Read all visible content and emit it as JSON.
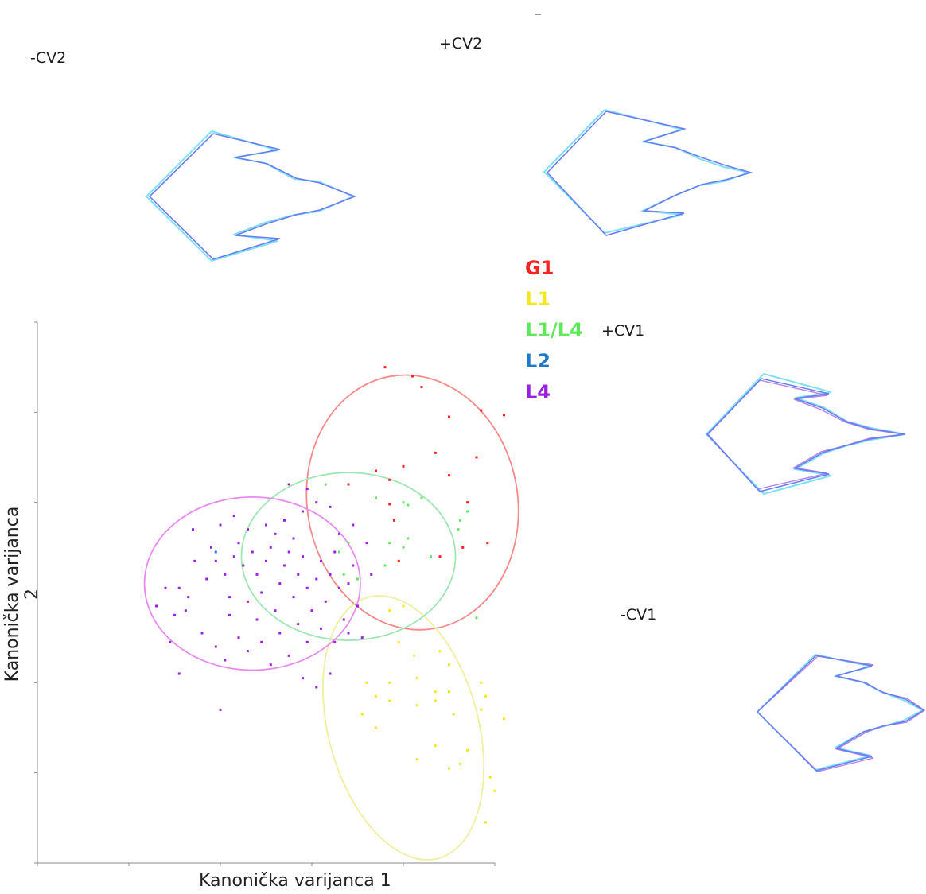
{
  "labels": {
    "minus_cv2": "-CV2",
    "plus_cv2": "+CV2",
    "plus_cv1": "+CV1",
    "minus_cv1": "-CV1"
  },
  "legend": [
    {
      "name": "G1",
      "color": "#ff2020"
    },
    {
      "name": "L1",
      "color": "#f5e81a"
    },
    {
      "name": "L1/L4",
      "color": "#5ee85a"
    },
    {
      "name": "L2",
      "color": "#1f78c8"
    },
    {
      "name": "L4",
      "color": "#9a20e0"
    }
  ],
  "chart_data": {
    "type": "scatter",
    "xlabel": "Kanonička varijanca 1",
    "ylabel": "Kanonička varijanca 2",
    "xlim": [
      -4,
      1
    ],
    "ylim": [
      -3,
      3
    ],
    "series": [
      {
        "name": "G1",
        "color": "#ff2020",
        "ellipse_color": "#f48a8a",
        "ellipse": {
          "cx": 0.1,
          "cy": 1.0,
          "rx": 1.15,
          "ry": 1.42,
          "angle": -10
        },
        "points": [
          [
            -0.2,
            2.5
          ],
          [
            0.1,
            2.4
          ],
          [
            0.2,
            2.28
          ],
          [
            0.5,
            1.95
          ],
          [
            0.85,
            2.02
          ],
          [
            1.1,
            1.97
          ],
          [
            -0.6,
            1.2
          ],
          [
            -0.15,
            1.25
          ],
          [
            0.0,
            1.4
          ],
          [
            0.35,
            1.55
          ],
          [
            0.8,
            1.5
          ],
          [
            0.5,
            1.3
          ],
          [
            -0.3,
            1.35
          ],
          [
            0.7,
            1.0
          ],
          [
            -0.15,
            0.98
          ],
          [
            0.65,
            0.5
          ],
          [
            0.92,
            0.55
          ],
          [
            -0.1,
            0.8
          ],
          [
            -0.05,
            0.35
          ],
          [
            0.4,
            0.4
          ]
        ]
      },
      {
        "name": "L1",
        "color": "#f5e81a",
        "ellipse_color": "#f0ef9e",
        "ellipse": {
          "cx": -0.0,
          "cy": -1.5,
          "rx": 0.82,
          "ry": 1.5,
          "angle": -15
        },
        "points": [
          [
            -0.15,
            -0.2
          ],
          [
            0.0,
            -0.15
          ],
          [
            -0.05,
            -0.55
          ],
          [
            0.12,
            -0.7
          ],
          [
            0.4,
            -0.65
          ],
          [
            0.5,
            -0.8
          ],
          [
            -0.4,
            -1.0
          ],
          [
            -0.15,
            -1.0
          ],
          [
            0.15,
            -0.95
          ],
          [
            0.35,
            -1.1
          ],
          [
            0.5,
            -1.1
          ],
          [
            0.9,
            -1.15
          ],
          [
            -0.3,
            -1.15
          ],
          [
            -0.15,
            -1.2
          ],
          [
            0.35,
            -1.2
          ],
          [
            0.55,
            -1.35
          ],
          [
            -0.45,
            -1.35
          ],
          [
            0.15,
            -1.25
          ],
          [
            0.85,
            -1.3
          ],
          [
            0.35,
            -1.7
          ],
          [
            0.15,
            -1.85
          ],
          [
            0.7,
            -1.75
          ],
          [
            0.5,
            -1.95
          ],
          [
            0.62,
            -1.9
          ],
          [
            0.95,
            -2.05
          ],
          [
            1.0,
            -2.2
          ],
          [
            0.9,
            -2.55
          ],
          [
            -0.3,
            -1.5
          ],
          [
            1.1,
            -1.4
          ],
          [
            0.85,
            -1.0
          ]
        ]
      },
      {
        "name": "L1/L4",
        "color": "#5ee85a",
        "ellipse_color": "#9fe6b4",
        "ellipse": {
          "cx": -0.6,
          "cy": 0.4,
          "rx": 1.17,
          "ry": 0.93,
          "angle": 0
        },
        "points": [
          [
            -0.85,
            1.2
          ],
          [
            -0.3,
            1.05
          ],
          [
            0.2,
            1.05
          ],
          [
            0.0,
            1.0
          ],
          [
            0.05,
            0.97
          ],
          [
            0.7,
            0.9
          ],
          [
            0.62,
            0.8
          ],
          [
            -0.6,
            0.55
          ],
          [
            0.05,
            0.6
          ],
          [
            0.0,
            0.5
          ],
          [
            -0.15,
            0.55
          ],
          [
            0.3,
            0.4
          ],
          [
            -0.5,
            0.15
          ],
          [
            -0.65,
            0.2
          ],
          [
            0.6,
            0.7
          ],
          [
            0.8,
            -0.28
          ],
          [
            -0.7,
            0.45
          ],
          [
            -0.2,
            0.3
          ]
        ]
      },
      {
        "name": "L2",
        "color": "#1f78c8",
        "ellipse_color": null,
        "ellipse": null,
        "points": [
          [
            -2.05,
            0.45
          ]
        ]
      },
      {
        "name": "L4",
        "color": "#9a20e0",
        "ellipse_color": "#e68af0",
        "ellipse": {
          "cx": -1.65,
          "cy": 0.1,
          "rx": 1.18,
          "ry": 0.96,
          "angle": 0
        },
        "points": [
          [
            -2.45,
            0.05
          ],
          [
            -2.5,
            -0.25
          ],
          [
            -2.38,
            -0.2
          ],
          [
            -2.28,
            0.35
          ],
          [
            -2.15,
            0.15
          ],
          [
            -2.1,
            0.5
          ],
          [
            -2.05,
            0.35
          ],
          [
            -1.95,
            0.2
          ],
          [
            -1.9,
            -0.05
          ],
          [
            -1.85,
            0.4
          ],
          [
            -1.8,
            0.55
          ],
          [
            -1.75,
            0.3
          ],
          [
            -1.7,
            -0.1
          ],
          [
            -1.65,
            0.45
          ],
          [
            -1.6,
            0.2
          ],
          [
            -1.55,
            0.0
          ],
          [
            -1.5,
            0.35
          ],
          [
            -1.45,
            0.5
          ],
          [
            -1.4,
            -0.2
          ],
          [
            -1.35,
            0.1
          ],
          [
            -1.3,
            0.3
          ],
          [
            -1.25,
            0.45
          ],
          [
            -1.2,
            -0.05
          ],
          [
            -1.15,
            0.2
          ],
          [
            -1.1,
            0.4
          ],
          [
            -1.05,
            0.05
          ],
          [
            -1.0,
            -0.2
          ],
          [
            -0.95,
            0.15
          ],
          [
            -0.9,
            0.35
          ],
          [
            -0.85,
            -0.1
          ],
          [
            -0.8,
            0.2
          ],
          [
            -0.75,
            0.45
          ],
          [
            -0.7,
            0.05
          ],
          [
            -0.65,
            -0.3
          ],
          [
            -0.6,
            0.1
          ],
          [
            -0.55,
            0.3
          ],
          [
            -0.5,
            -0.15
          ],
          [
            -2.2,
            -0.45
          ],
          [
            -2.05,
            -0.6
          ],
          [
            -1.95,
            -0.75
          ],
          [
            -1.8,
            -0.5
          ],
          [
            -1.7,
            -0.65
          ],
          [
            -1.55,
            -0.55
          ],
          [
            -1.45,
            -0.8
          ],
          [
            -1.35,
            -0.45
          ],
          [
            -1.25,
            -0.7
          ],
          [
            -1.15,
            -0.35
          ],
          [
            -1.05,
            -0.55
          ],
          [
            -0.9,
            -0.4
          ],
          [
            -0.75,
            -0.55
          ],
          [
            -2.3,
            0.7
          ],
          [
            -2.0,
            0.75
          ],
          [
            -1.85,
            0.85
          ],
          [
            -1.7,
            0.7
          ],
          [
            -1.5,
            0.75
          ],
          [
            -1.3,
            0.8
          ],
          [
            -1.1,
            0.9
          ],
          [
            -0.95,
            1.0
          ],
          [
            -0.8,
            0.95
          ],
          [
            -0.55,
            0.75
          ],
          [
            -0.4,
            0.55
          ],
          [
            -0.35,
            0.2
          ],
          [
            -0.6,
            -0.45
          ],
          [
            -0.45,
            -0.5
          ],
          [
            -2.7,
            -0.15
          ],
          [
            -2.6,
            0.05
          ],
          [
            -2.55,
            -0.55
          ],
          [
            -2.45,
            -0.9
          ],
          [
            -2.0,
            -1.3
          ],
          [
            -1.1,
            -0.95
          ],
          [
            -0.95,
            -1.05
          ],
          [
            -0.8,
            -0.9
          ],
          [
            -1.25,
            1.2
          ],
          [
            -1.05,
            1.15
          ],
          [
            -1.9,
            -0.25
          ],
          [
            -1.6,
            -0.3
          ],
          [
            -1.4,
            0.65
          ],
          [
            -1.2,
            0.6
          ],
          [
            -0.7,
            0.65
          ],
          [
            -2.35,
            -0.05
          ]
        ]
      }
    ]
  }
}
